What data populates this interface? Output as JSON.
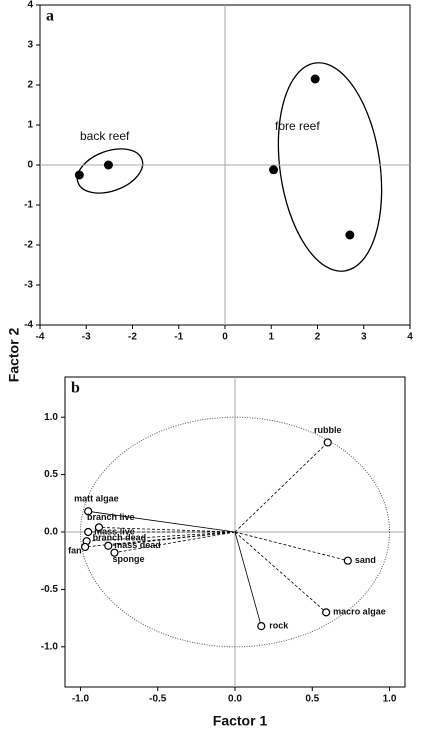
{
  "chart_data": [
    {
      "type": "scatter",
      "title": "a",
      "x": [
        -3.15,
        -2.52,
        1.95,
        1.05,
        2.7
      ],
      "y": [
        -0.25,
        0,
        2.15,
        -0.12,
        -1.75
      ],
      "color": "#000000",
      "annotations": [
        "back reef",
        "fore reef"
      ],
      "xlim": [
        -4,
        4
      ],
      "ylim": [
        -4,
        4
      ],
      "xticks": [
        -4,
        -3,
        -2,
        -1,
        0,
        1,
        2,
        3,
        4
      ],
      "yticks": [
        -4,
        -3,
        -2,
        -1,
        0,
        1,
        2,
        3,
        4
      ]
    },
    {
      "type": "biplot",
      "title": "b",
      "xlabel": "Factor 1",
      "ylabel": "Factor 2",
      "labels": [
        "rubble",
        "matt algae",
        "branch live",
        "mass live",
        "branch dead",
        "fan",
        "mass dead",
        "sponge",
        "sand",
        "macro algae",
        "rock"
      ],
      "x": [
        0.6,
        -0.95,
        -0.88,
        -0.95,
        -0.96,
        -0.97,
        -0.82,
        -0.78,
        0.73,
        0.59,
        0.17
      ],
      "y": [
        0.78,
        0.18,
        0.04,
        0.0,
        -0.08,
        -0.13,
        -0.12,
        -0.18,
        -0.25,
        -0.7,
        -0.82
      ],
      "line_styles": [
        "dashed",
        "solid",
        "dashed",
        "dashed",
        "dashed",
        "dashed",
        "dashed",
        "dashed",
        "dashed",
        "dashed",
        "solid"
      ],
      "xlim": [
        -1.1,
        1.1
      ],
      "ylim": [
        -1.35,
        1.35
      ],
      "xticks": [
        {
          "value": -1,
          "label": "-1.0"
        },
        -0.5,
        {
          "value": 0,
          "label": "0.0"
        },
        0.5,
        {
          "value": 1,
          "label": "1.0"
        }
      ],
      "yticks": [
        {
          "value": 1,
          "label": "1.0"
        },
        0.5,
        {
          "value": 0,
          "label": "0.0"
        },
        -0.5,
        {
          "value": -1,
          "label": "-1.0"
        }
      ]
    }
  ]
}
